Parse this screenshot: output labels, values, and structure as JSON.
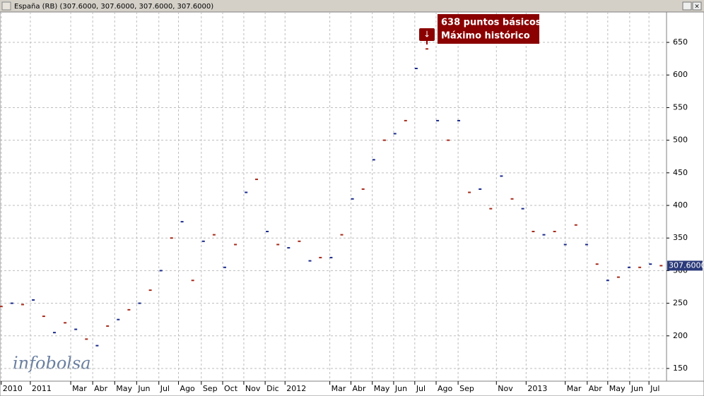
{
  "chart_data": {
    "type": "dash",
    "title": "España (RB) (307.6000, 307.6000, 307.6000, 307.6000)",
    "annotation": [
      "638 puntos básicos",
      "Máximo histórico"
    ],
    "last_label": "307.6000",
    "logo": "infobolsa",
    "x": [
      -1.39,
      -0.88,
      -0.37,
      0.14,
      0.64,
      1.15,
      1.66,
      2.17,
      2.68,
      3.19,
      3.69,
      4.2,
      4.71,
      5.22,
      5.73,
      6.24,
      6.75,
      7.25,
      7.76,
      8.27,
      8.78,
      9.29,
      9.8,
      10.31,
      10.81,
      11.32,
      11.83,
      12.34,
      12.85,
      13.36,
      13.86,
      14.37,
      14.88,
      15.39,
      15.9,
      16.41,
      16.92,
      17.42,
      17.93,
      18.44,
      18.95,
      19.46,
      19.97,
      20.47,
      20.98,
      21.49,
      22.0,
      22.51,
      23.02,
      23.53,
      24.03,
      24.54,
      25.05,
      25.56,
      26.07,
      26.58,
      27.08,
      27.59,
      28.1,
      28.61,
      29.12,
      29.63,
      30.14
    ],
    "series": [
      {
        "name": "España (RB)",
        "color": "#a52a1a",
        "values": [
          245,
          250,
          248,
          255,
          230,
          205,
          220,
          210,
          195,
          185,
          215,
          225,
          240,
          250,
          270,
          300,
          350,
          375,
          285,
          345,
          355,
          305,
          340,
          420,
          440,
          360,
          340,
          335,
          345,
          315,
          320,
          320,
          355,
          410,
          425,
          470,
          500,
          510,
          530,
          610,
          640,
          530,
          500,
          530,
          420,
          425,
          395,
          445,
          410,
          395,
          360,
          355,
          360,
          340,
          370,
          340,
          310,
          285,
          290,
          305,
          305,
          310,
          307.6
        ]
      }
    ],
    "xlim": [
      -1.45,
      30.4
    ],
    "xticks": [
      {
        "value": -1.39,
        "label": "2010"
      },
      {
        "value": 0,
        "label": "2011"
      },
      {
        "value": 1.93,
        "label": "Mar"
      },
      {
        "value": 2.98,
        "label": "Abr"
      },
      {
        "value": 4.03,
        "label": "May"
      },
      {
        "value": 5.08,
        "label": "Jun"
      },
      {
        "value": 6.14,
        "label": "Jul"
      },
      {
        "value": 7.08,
        "label": "Ago"
      },
      {
        "value": 8.17,
        "label": "Sep"
      },
      {
        "value": 9.19,
        "label": "Oct"
      },
      {
        "value": 10.2,
        "label": "Nov"
      },
      {
        "value": 11.22,
        "label": "Dic"
      },
      {
        "value": 12.17,
        "label": "2012"
      },
      {
        "value": 14.31,
        "label": "Mar"
      },
      {
        "value": 15.32,
        "label": "Abr"
      },
      {
        "value": 16.34,
        "label": "May"
      },
      {
        "value": 17.36,
        "label": "Jun"
      },
      {
        "value": 18.37,
        "label": "Jul"
      },
      {
        "value": 19.39,
        "label": "Ago"
      },
      {
        "value": 20.44,
        "label": "Sep"
      },
      {
        "value": 22.27,
        "label": "Nov"
      },
      {
        "value": 23.69,
        "label": "2013"
      },
      {
        "value": 25.56,
        "label": "Mar"
      },
      {
        "value": 26.61,
        "label": "Abr"
      },
      {
        "value": 27.59,
        "label": "May"
      },
      {
        "value": 28.64,
        "label": "Jun"
      },
      {
        "value": 29.56,
        "label": "Jul"
      }
    ],
    "ylim": [
      130.5,
      696.6
    ],
    "yticks": [
      150,
      200,
      250,
      300,
      350,
      400,
      450,
      500,
      550,
      600,
      650
    ],
    "grid": true
  }
}
